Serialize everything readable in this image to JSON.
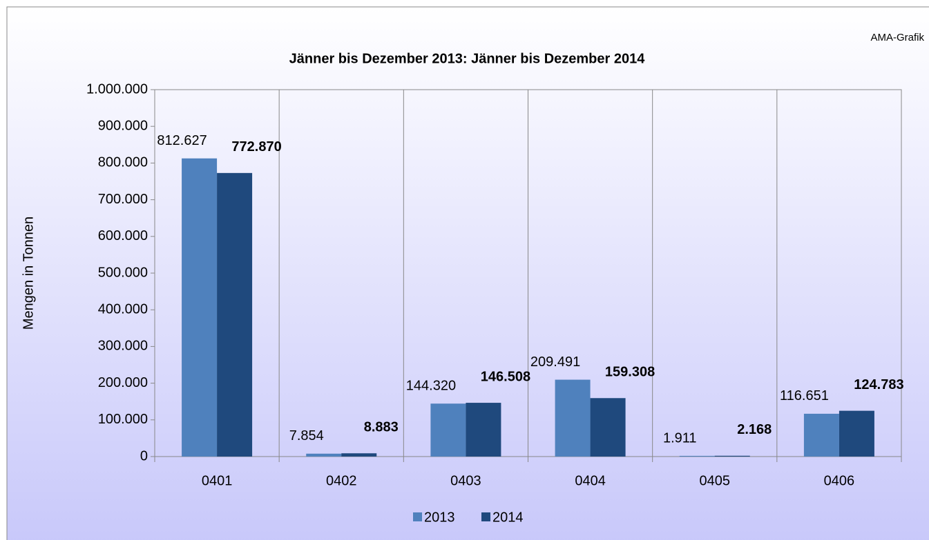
{
  "chart_data": {
    "type": "bar",
    "title": "Jänner bis Dezember 2013: Jänner bis Dezember 2014",
    "annotation": "AMA-Grafik",
    "ylabel": "Mengen in Tonnen",
    "categories": [
      "0401",
      "0402",
      "0403",
      "0404",
      "0405",
      "0406"
    ],
    "series": [
      {
        "name": "2013",
        "color": "#4f81bd",
        "values": [
          812627,
          7854,
          144320,
          209491,
          1911,
          116651
        ],
        "value_labels": [
          "812.627",
          "7.854",
          "144.320",
          "209.491",
          "1.911",
          "116.651"
        ]
      },
      {
        "name": "2014",
        "color": "#1f497d",
        "values": [
          772870,
          8883,
          146508,
          159308,
          2168,
          124783
        ],
        "value_labels": [
          "772.870",
          "8.883",
          "146.508",
          "159.308",
          "2.168",
          "124.783"
        ]
      }
    ],
    "ylim": [
      0,
      1000000
    ],
    "yticks": [
      0,
      {
        "value": 100000,
        "label": "100.000"
      },
      {
        "value": 200000,
        "label": "200.000"
      },
      {
        "value": 300000,
        "label": "300.000"
      },
      {
        "value": 400000,
        "label": "400.000"
      },
      {
        "value": 500000,
        "label": "500.000"
      },
      {
        "value": 600000,
        "label": "600.000"
      },
      {
        "value": 700000,
        "label": "700.000"
      },
      {
        "value": 800000,
        "label": "800.000"
      },
      {
        "value": 900000,
        "label": "900.000"
      },
      {
        "value": 1000000,
        "label": "1.000.000"
      }
    ],
    "legend": "bottom"
  }
}
